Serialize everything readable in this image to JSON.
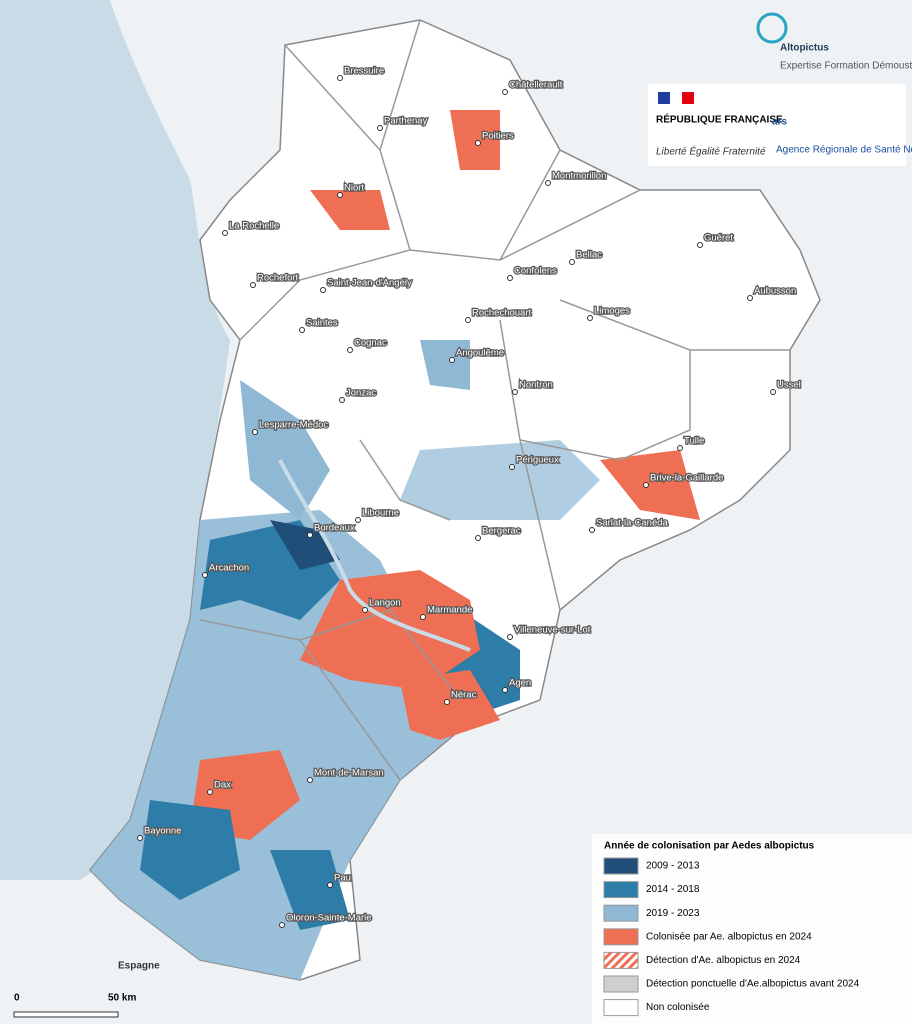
{
  "logo": {
    "name": "Altopictus",
    "tagline": "Expertise Formation Démoustication"
  },
  "republique": {
    "title": "RÉPUBLIQUE FRANÇAISE",
    "motto": "Liberté Égalité Fraternité"
  },
  "ars": {
    "name": "ars",
    "subtitle": "Agence Régionale de Santé Nouvelle-Aquitaine"
  },
  "cities": [
    "Bressuire",
    "Parthenay",
    "Châtellerault",
    "Poitiers",
    "Niort",
    "Montmorillon",
    "La Rochelle",
    "Rochefort",
    "Saint-Jean-d'Angély",
    "Confolens",
    "Bellac",
    "Guéret",
    "Aubusson",
    "Saintes",
    "Cognac",
    "Rochechouart",
    "Limoges",
    "Angoulême",
    "Nontron",
    "Ussel",
    "Jonzac",
    "Lesparre-Médoc",
    "Tulle",
    "Périgueux",
    "Brive-la-Gaillarde",
    "Libourne",
    "Sarlat-la-Canéda",
    "Bordeaux",
    "Bergerac",
    "Arcachon",
    "Langon",
    "Marmande",
    "Villeneuve-sur-Lot",
    "Agen",
    "Nérac",
    "Mont-de-Marsan",
    "Dax",
    "Bayonne",
    "Pau",
    "Oloron-Sainte-Marie"
  ],
  "country": "Espagne",
  "legend": {
    "title": "Année de colonisation par Aedes albopictus",
    "items": [
      {
        "name": "2009 - 2013",
        "color": "#1f4e79"
      },
      {
        "name": "2014 - 2018",
        "color": "#2e7ca8"
      },
      {
        "name": "2019 - 2023",
        "color": "#8fb8d4"
      },
      {
        "name": "Colonisée par Ae. albopictus en 2024",
        "color": "#ef6f55"
      },
      {
        "name": "Détection d'Ae. albopictus en 2024",
        "color": "#ef6f55",
        "pattern": "hatch"
      },
      {
        "name": "Détection ponctuelle d'Ae.albopictus avant 2024",
        "color": "#cfcfcf"
      },
      {
        "name": "Non colonisée",
        "color": "#ffffff"
      }
    ]
  },
  "scale": {
    "start": "0",
    "end": "50 km"
  }
}
